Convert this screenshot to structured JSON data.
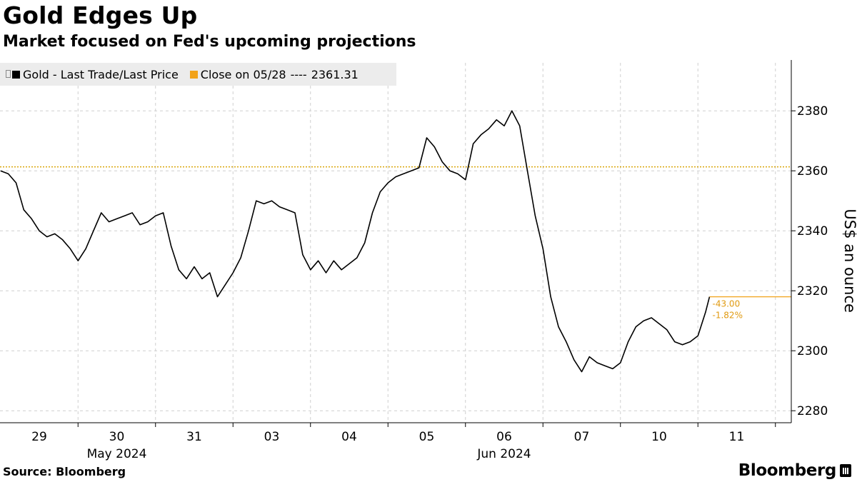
{
  "header": {
    "title": "Gold Edges Up",
    "subtitle": "Market focused on Fed's upcoming projections"
  },
  "footer": {
    "source": "Source: Bloomberg",
    "brand": "Bloomberg"
  },
  "colors": {
    "series": "#000000",
    "reference": "#f2a31a",
    "grid": "#c8c8c8",
    "legend_bg": "#ececec"
  },
  "chart_data": {
    "type": "line",
    "title": "Gold Edges Up",
    "subtitle": "Market focused on Fed's upcoming projections",
    "ylabel": "US$ an ounce",
    "ylim": [
      2276,
      2396
    ],
    "yticks": [
      2280,
      2300,
      2320,
      2340,
      2360,
      2380
    ],
    "grid": true,
    "legend_position": "top-left",
    "x_categories": [
      "29",
      "30",
      "31",
      "03",
      "04",
      "05",
      "06",
      "07",
      "10",
      "11"
    ],
    "x_months": [
      {
        "label": "May 2024",
        "at": "30"
      },
      {
        "label": "Jun 2024",
        "at": "06"
      }
    ],
    "series": [
      {
        "name": "Gold - Last Trade/Last Price",
        "color": "#000000",
        "x": [
          0.0,
          0.1,
          0.2,
          0.3,
          0.4,
          0.5,
          0.6,
          0.7,
          0.8,
          0.9,
          1.0,
          1.1,
          1.2,
          1.3,
          1.4,
          1.5,
          1.6,
          1.7,
          1.8,
          1.9,
          2.0,
          2.1,
          2.2,
          2.3,
          2.4,
          2.5,
          2.6,
          2.7,
          2.8,
          2.9,
          3.0,
          3.1,
          3.2,
          3.3,
          3.4,
          3.5,
          3.6,
          3.7,
          3.8,
          3.9,
          4.0,
          4.1,
          4.2,
          4.3,
          4.4,
          4.5,
          4.6,
          4.7,
          4.8,
          4.9,
          5.0,
          5.1,
          5.2,
          5.3,
          5.4,
          5.5,
          5.6,
          5.7,
          5.8,
          5.9,
          6.0,
          6.1,
          6.2,
          6.3,
          6.4,
          6.5,
          6.6,
          6.7,
          6.8,
          6.9,
          7.0,
          7.1,
          7.2,
          7.3,
          7.4,
          7.5,
          7.6,
          7.7,
          7.8,
          7.9,
          8.0,
          8.1,
          8.2,
          8.3,
          8.4,
          8.5,
          8.6,
          8.7,
          8.8,
          8.9,
          9.0,
          9.1,
          9.15
        ],
        "values": [
          2360,
          2359,
          2356,
          2347,
          2344,
          2340,
          2338,
          2339,
          2337,
          2334,
          2330,
          2334,
          2340,
          2346,
          2343,
          2344,
          2345,
          2346,
          2342,
          2343,
          2345,
          2346,
          2335,
          2327,
          2324,
          2328,
          2324,
          2326,
          2318,
          2322,
          2326,
          2331,
          2340,
          2350,
          2349,
          2350,
          2348,
          2347,
          2346,
          2332,
          2327,
          2330,
          2326,
          2330,
          2327,
          2329,
          2331,
          2336,
          2346,
          2353,
          2356,
          2358,
          2359,
          2360,
          2361,
          2371,
          2368,
          2363,
          2360,
          2359,
          2357,
          2369,
          2372,
          2374,
          2377,
          2375,
          2380,
          2375,
          2360,
          2345,
          2334,
          2318,
          2308,
          2303,
          2297,
          2293,
          2298,
          2296,
          2295,
          2294,
          2296,
          2303,
          2308,
          2310,
          2311,
          2309,
          2307,
          2303,
          2302,
          2303,
          2305,
          2313,
          2318
        ]
      }
    ],
    "reference_line": {
      "label": "Close on 05/28",
      "value": 2361.31,
      "value_label": "2361.31",
      "separator": "----"
    },
    "last_value": 2318,
    "annotations": {
      "change": "-43.00",
      "change_pct": "-1.82%"
    }
  }
}
